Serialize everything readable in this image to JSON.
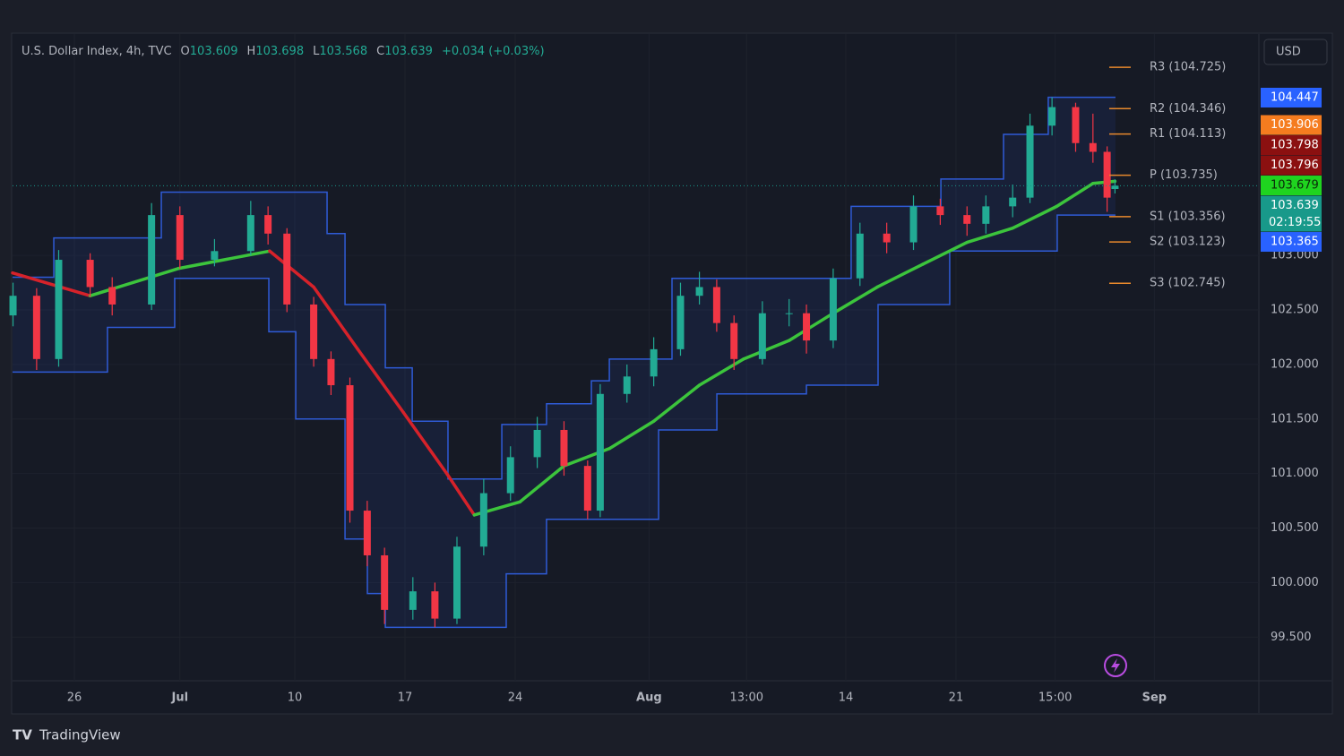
{
  "chart_data": {
    "type": "candlestick",
    "symbol": "U.S. Dollar Index, 4h, TVC",
    "ohlc": [
      {
        "label": "O",
        "value": 103.609
      },
      {
        "label": "H",
        "value": 103.698
      },
      {
        "label": "L",
        "value": 103.568
      },
      {
        "label": "C",
        "value": 103.639
      }
    ],
    "change": "+0.034 (+0.03%)",
    "currency": "USD",
    "last_price": 103.639,
    "countdown": "02:19:55",
    "brand": "TradingView",
    "up_color": "#22ab94",
    "down_color": "#f23645",
    "candles": {
      "x": [
        22.1,
        23.6,
        25.0,
        27.0,
        28.4,
        30.9,
        32.7,
        34.9,
        37.2,
        38.3,
        39.5,
        41.2,
        42.3,
        43.5,
        44.6,
        45.7,
        47.5,
        48.9,
        50.3,
        52.0,
        53.7,
        55.4,
        57.1,
        58.6,
        59.4,
        61.1,
        62.8,
        64.5,
        65.7,
        66.8,
        67.9,
        69.7,
        71.4,
        72.5,
        74.2,
        75.9,
        77.6,
        79.3,
        81.0,
        82.7,
        83.9,
        85.6,
        86.7,
        88.1,
        89.6,
        90.7,
        91.6,
        92.1
      ],
      "open": [
        102.45,
        102.63,
        102.05,
        102.96,
        102.71,
        102.55,
        103.37,
        102.96,
        103.04,
        103.37,
        103.2,
        102.55,
        102.05,
        101.81,
        100.66,
        100.25,
        99.75,
        99.92,
        99.67,
        100.33,
        100.82,
        101.15,
        101.4,
        101.07,
        100.66,
        101.73,
        101.89,
        102.14,
        102.63,
        102.71,
        102.38,
        102.05,
        102.47,
        102.47,
        102.22,
        102.79,
        103.2,
        103.12,
        103.45,
        103.37,
        103.29,
        103.45,
        103.53,
        104.19,
        104.36,
        104.03,
        103.95,
        103.609
      ],
      "high": [
        102.75,
        102.7,
        103.05,
        103.02,
        102.8,
        103.48,
        103.45,
        103.15,
        103.5,
        103.45,
        103.25,
        102.62,
        102.12,
        101.88,
        100.75,
        100.32,
        100.05,
        100.0,
        100.42,
        100.95,
        101.25,
        101.52,
        101.48,
        101.12,
        101.82,
        102.0,
        102.25,
        102.75,
        102.85,
        102.78,
        102.45,
        102.58,
        102.6,
        102.55,
        102.88,
        103.3,
        103.3,
        103.55,
        103.52,
        103.45,
        103.55,
        103.65,
        104.3,
        104.45,
        104.4,
        104.3,
        104.0,
        103.698
      ],
      "low": [
        102.35,
        101.95,
        101.98,
        102.62,
        102.45,
        102.5,
        102.88,
        102.9,
        103.0,
        103.1,
        102.48,
        101.98,
        101.72,
        100.55,
        100.15,
        99.62,
        99.66,
        99.59,
        99.62,
        100.25,
        100.75,
        101.05,
        100.98,
        100.58,
        100.6,
        101.65,
        101.8,
        102.08,
        102.55,
        102.3,
        101.95,
        102.0,
        102.35,
        102.1,
        102.15,
        102.72,
        103.02,
        103.05,
        103.28,
        103.18,
        103.2,
        103.35,
        103.48,
        104.1,
        103.95,
        103.85,
        103.4,
        103.568
      ],
      "close": [
        102.63,
        102.05,
        102.96,
        102.71,
        102.55,
        103.37,
        102.96,
        103.04,
        103.37,
        103.2,
        102.55,
        102.05,
        101.81,
        100.66,
        100.25,
        99.75,
        99.92,
        99.67,
        100.33,
        100.82,
        101.15,
        101.4,
        101.07,
        100.66,
        101.73,
        101.89,
        102.14,
        102.63,
        102.71,
        102.38,
        102.05,
        102.47,
        102.47,
        102.22,
        102.79,
        103.2,
        103.12,
        103.45,
        103.37,
        103.29,
        103.45,
        103.53,
        104.19,
        104.36,
        104.03,
        103.95,
        103.53,
        103.639
      ]
    },
    "channel_upper": {
      "color": "#2f5bd6",
      "x": [
        22.07,
        24.69,
        31.52,
        42.05,
        43.19,
        45.75,
        47.46,
        49.73,
        53.15,
        55.99,
        58.84,
        59.98,
        63.96,
        75.34,
        81.04,
        85.02,
        87.86,
        92.13
      ],
      "values": [
        102.8,
        103.16,
        103.58,
        103.2,
        102.55,
        101.97,
        101.48,
        100.95,
        101.45,
        101.64,
        101.85,
        102.05,
        102.79,
        103.45,
        103.7,
        104.11,
        104.45,
        104.45
      ]
    },
    "channel_lower": {
      "color": "#2f5bd6",
      "x": [
        22.07,
        28.1,
        32.37,
        38.35,
        40.06,
        43.19,
        44.61,
        45.75,
        53.43,
        55.99,
        63.11,
        66.81,
        72.5,
        77.05,
        81.6,
        88.43,
        92.13
      ],
      "values": [
        101.93,
        102.34,
        102.79,
        102.3,
        101.5,
        100.4,
        99.9,
        99.59,
        100.08,
        100.58,
        101.4,
        101.73,
        101.81,
        102.55,
        103.04,
        103.37,
        103.37
      ]
    },
    "moving_average": {
      "rising_color": "#3cc43c",
      "falling_color": "#d6222a",
      "x": [
        22.07,
        27.0,
        32.6,
        38.4,
        41.2,
        44.0,
        46.9,
        49.7,
        51.4,
        54.3,
        57.1,
        60.0,
        62.8,
        65.7,
        68.5,
        71.4,
        74.2,
        77.0,
        79.9,
        82.7,
        85.6,
        88.4,
        90.7,
        92.1
      ],
      "values": [
        102.84,
        102.63,
        102.88,
        103.04,
        102.71,
        102.14,
        101.56,
        100.99,
        100.62,
        100.74,
        101.07,
        101.23,
        101.48,
        101.81,
        102.05,
        102.22,
        102.47,
        102.71,
        102.92,
        103.12,
        103.25,
        103.45,
        103.66,
        103.68
      ]
    },
    "pivots": {
      "color": "#e8892c",
      "levels": [
        {
          "label": "R3 (104.725)",
          "value": 104.725
        },
        {
          "label": "R2 (104.346)",
          "value": 104.346
        },
        {
          "label": "R1 (104.113)",
          "value": 104.113
        },
        {
          "label": "P (103.735)",
          "value": 103.735
        },
        {
          "label": "S1 (103.356)",
          "value": 103.356
        },
        {
          "label": "S2 (103.123)",
          "value": 103.123
        },
        {
          "label": "S3 (102.745)",
          "value": 102.745
        }
      ]
    },
    "price_tags": [
      {
        "value": 104.447,
        "color": "#2962ff"
      },
      {
        "value": 103.906,
        "color": "#f57c1f"
      },
      {
        "value": 103.798,
        "color": "#8b1010"
      },
      {
        "value": 103.796,
        "color": "#8b1010"
      },
      {
        "value": 103.679,
        "color": "#1fd41f"
      },
      {
        "value": 103.639,
        "color": "#18998a"
      },
      {
        "value": 103.365,
        "color": "#2962ff"
      }
    ],
    "xlim": [
      22.07,
      101.24
    ],
    "ylim": [
      99.1,
      105.03
    ],
    "yticks": [
      {
        "value": 103.0,
        "label": "103.000"
      },
      {
        "value": 102.5,
        "label": "102.500"
      },
      {
        "value": 102.0,
        "label": "102.000"
      },
      {
        "value": 101.5,
        "label": "101.500"
      },
      {
        "value": 101.0,
        "label": "101.000"
      },
      {
        "value": 100.5,
        "label": "100.500"
      },
      {
        "value": 100.0,
        "label": "100.000"
      },
      {
        "value": 99.5,
        "label": "99.500"
      }
    ],
    "xticks": [
      {
        "value": 26,
        "label": "26"
      },
      {
        "value": 32.7,
        "label": "Jul"
      },
      {
        "value": 40,
        "label": "10"
      },
      {
        "value": 47,
        "label": "17"
      },
      {
        "value": 54,
        "label": "24"
      },
      {
        "value": 62.5,
        "label": "Aug"
      },
      {
        "value": 68.7,
        "label": "13:00"
      },
      {
        "value": 75,
        "label": "14"
      },
      {
        "value": 82,
        "label": "21"
      },
      {
        "value": 88.3,
        "label": "15:00"
      },
      {
        "value": 94.6,
        "label": "Sep"
      }
    ]
  }
}
